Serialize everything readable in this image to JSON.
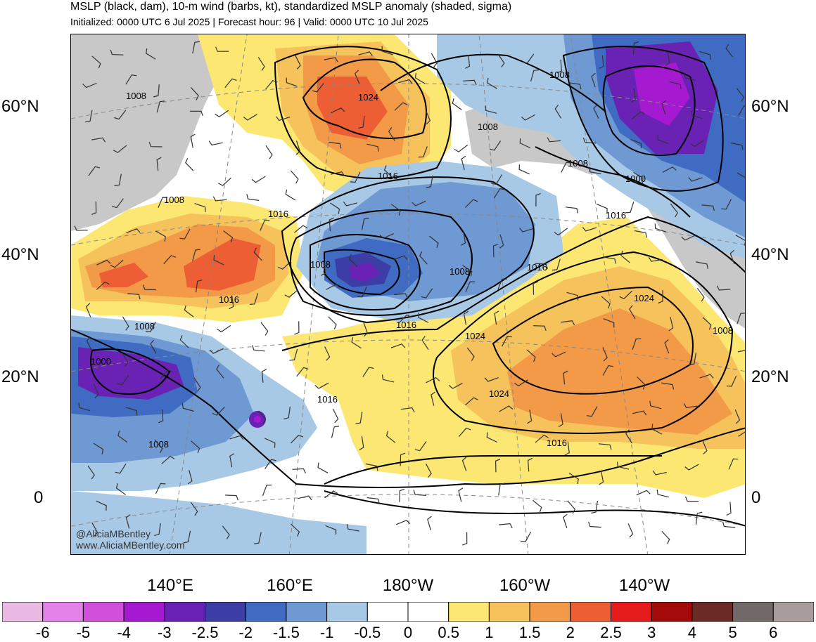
{
  "header": {
    "title": "MSLP (black, dam), 10-m wind (barbs, kt), standardized MSLP anomaly (shaded, sigma)",
    "subtitle": "Initialized: 0000 UTC 6 Jul 2025 | Forecast hour: 96 | Valid: 0000 UTC 10 Jul 2025"
  },
  "axes": {
    "lat_left": [
      "60°N",
      "40°N",
      "20°N",
      "0"
    ],
    "lat_right": [
      "60°N",
      "40°N",
      "20°N",
      "0"
    ],
    "lon": [
      "140°E",
      "160°E",
      "180°W",
      "160°W",
      "140°W"
    ]
  },
  "isobar_labels": [
    "1008",
    "1024",
    "1008",
    "1008",
    "1008",
    "1000",
    "1016",
    "1016",
    "1016",
    "1008",
    "1008",
    "1016",
    "1016",
    "1024",
    "1008",
    "1008",
    "1000",
    "1016",
    "1024",
    "1016",
    "1008",
    "1024",
    "1008",
    "1016"
  ],
  "watermark": {
    "handle": "@AliciaMBentley",
    "site": "www.AliciaMBentley.com"
  },
  "colorbar": {
    "labels": [
      "-6",
      "-5",
      "-4",
      "-3",
      "-2.5",
      "-2",
      "-1.5",
      "-1",
      "-0.5",
      "0",
      "0.5",
      "1",
      "1.5",
      "2",
      "2.5",
      "3",
      "4",
      "5",
      "6"
    ],
    "colors": [
      "#eab8e4",
      "#e481e8",
      "#d24fdc",
      "#a51ad0",
      "#6a22b4",
      "#3d3da6",
      "#3f6cc2",
      "#6f99d2",
      "#a8c9e6",
      "#ffffff",
      "#ffffff",
      "#fbe772",
      "#f5c25c",
      "#f39a48",
      "#ee5e34",
      "#e61b1b",
      "#a30a0a",
      "#6b2a24",
      "#726a69",
      "#a89d9c"
    ]
  },
  "colors": {
    "land": "#c8c8c8",
    "neutral": "#ffffff"
  }
}
